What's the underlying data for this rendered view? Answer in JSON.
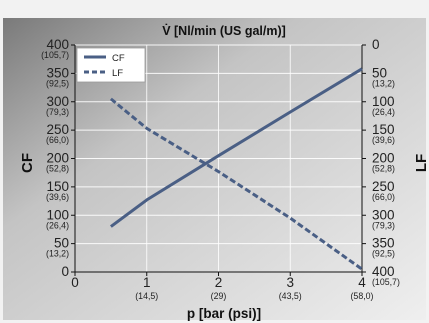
{
  "chart_data": {
    "type": "line",
    "title": "V̇ [Nl/min (US gal/m)]",
    "xlabel": "p [bar (psi)]",
    "ylabel_left": "CF",
    "ylabel_right": "LF",
    "xlim": [
      0,
      4
    ],
    "ylim_left": [
      0,
      400
    ],
    "ylim_right": [
      400,
      0
    ],
    "x_ticks": [
      {
        "value": 0,
        "label": "0",
        "sub": ""
      },
      {
        "value": 1,
        "label": "1",
        "sub": "(14,5)"
      },
      {
        "value": 2,
        "label": "2",
        "sub": "(29)"
      },
      {
        "value": 3,
        "label": "3",
        "sub": "(43,5)"
      },
      {
        "value": 4,
        "label": "4",
        "sub": "(58,0)"
      }
    ],
    "y_left_ticks": [
      {
        "value": 0,
        "label": "0",
        "sub": ""
      },
      {
        "value": 50,
        "label": "50",
        "sub": "(13,2)"
      },
      {
        "value": 100,
        "label": "100",
        "sub": "(26,4)"
      },
      {
        "value": 150,
        "label": "150",
        "sub": "(39,6)"
      },
      {
        "value": 200,
        "label": "200",
        "sub": "(52,8)"
      },
      {
        "value": 250,
        "label": "250",
        "sub": "(66,0)"
      },
      {
        "value": 300,
        "label": "300",
        "sub": "(79,3)"
      },
      {
        "value": 350,
        "label": "350",
        "sub": "(92,5)"
      },
      {
        "value": 400,
        "label": "400",
        "sub": "(105,7)"
      }
    ],
    "y_right_ticks": [
      {
        "value": 0,
        "label": "0",
        "sub": ""
      },
      {
        "value": 50,
        "label": "50",
        "sub": "(13,2)"
      },
      {
        "value": 100,
        "label": "100",
        "sub": "(26,4)"
      },
      {
        "value": 150,
        "label": "150",
        "sub": "(39,6)"
      },
      {
        "value": 200,
        "label": "200",
        "sub": "(52,8)"
      },
      {
        "value": 250,
        "label": "250",
        "sub": "(66,0)"
      },
      {
        "value": 300,
        "label": "300",
        "sub": "(79,3)"
      },
      {
        "value": 350,
        "label": "350",
        "sub": "(92,5)"
      },
      {
        "value": 400,
        "label": "400",
        "sub": "(105,7)"
      }
    ],
    "series": [
      {
        "name": "CF",
        "axis": "left",
        "style": "solid",
        "color": "#4a5f85",
        "x": [
          0.5,
          1.0,
          2.0,
          3.0,
          4.0
        ],
        "y": [
          80,
          127,
          205,
          282,
          358
        ]
      },
      {
        "name": "LF",
        "axis": "right",
        "style": "dashed",
        "color": "#4a5f85",
        "x": [
          0.5,
          1.0,
          2.0,
          3.0,
          4.0
        ],
        "y": [
          95,
          147,
          223,
          305,
          395
        ]
      }
    ],
    "legend_position": "top-left",
    "grid": true
  }
}
